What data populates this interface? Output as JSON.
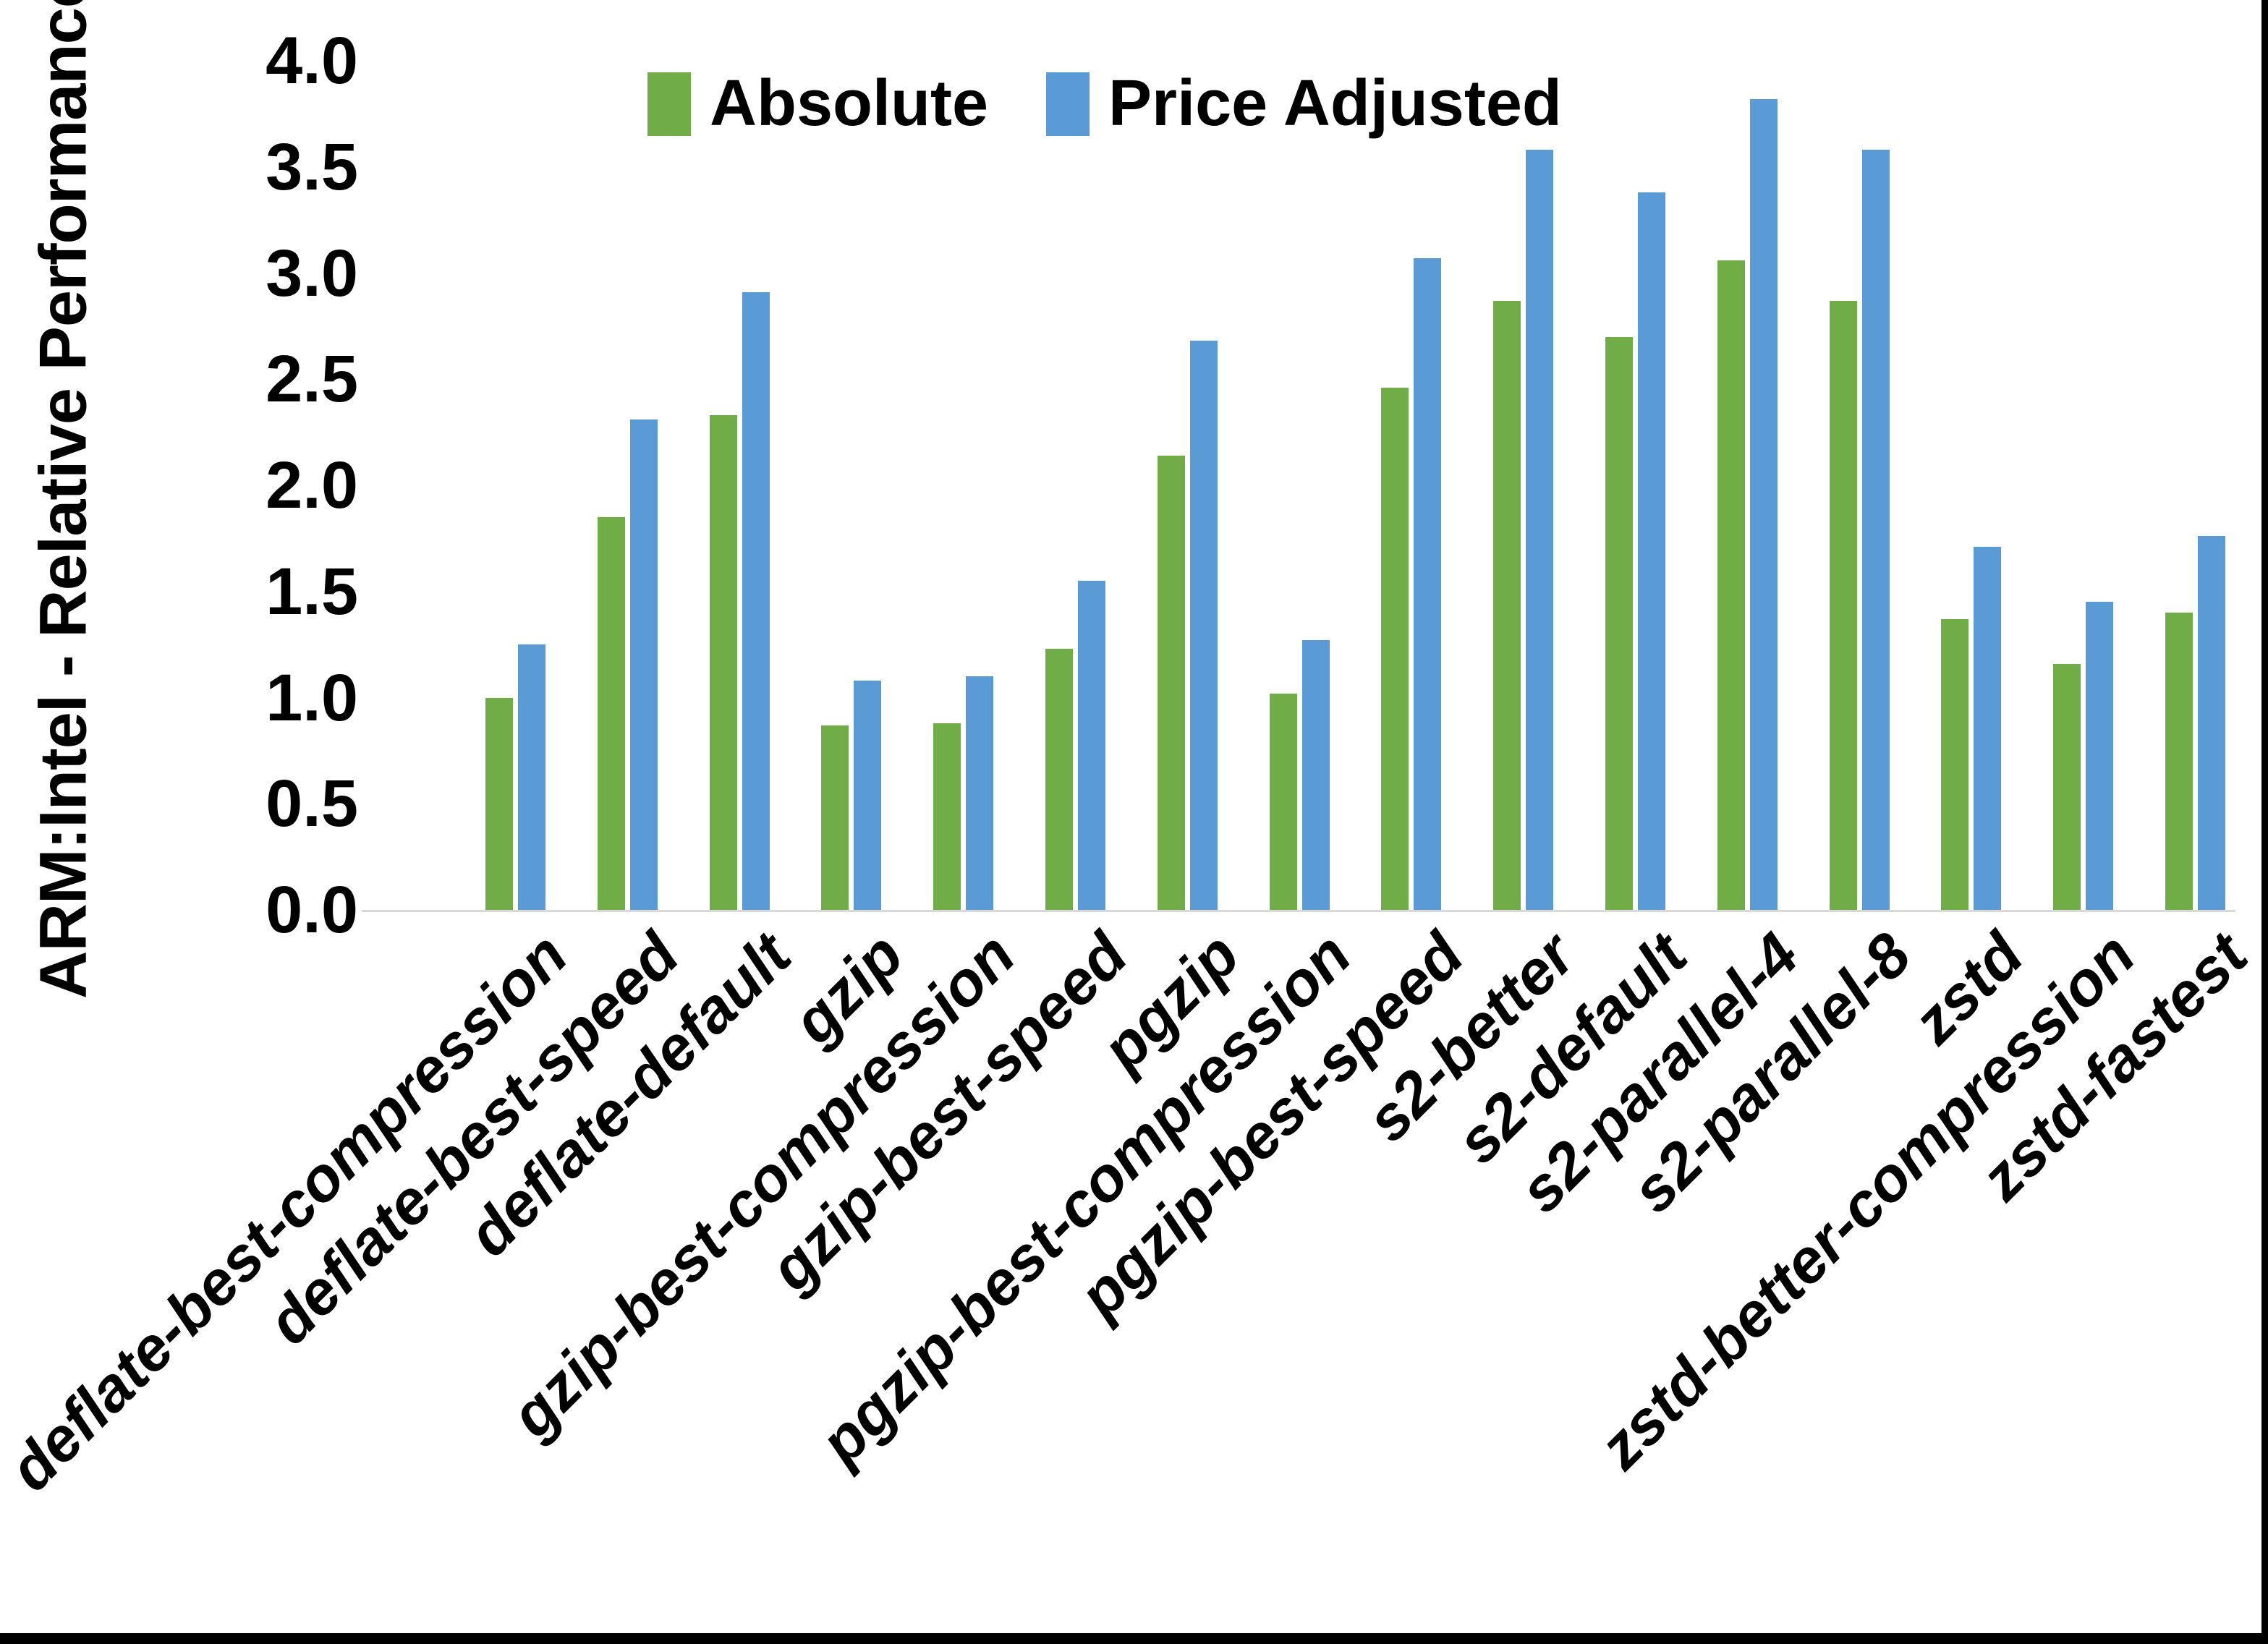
{
  "figure": {
    "background": "#ffffff",
    "border_color": "#000000"
  },
  "chart_data": {
    "type": "bar",
    "title": "",
    "xlabel": "",
    "ylabel": "ARM:Intel - Relative Performance",
    "ylim": [
      0,
      4
    ],
    "ytick_step": 0.5,
    "yticks": [
      "4.0",
      "3.5",
      "3.0",
      "2.5",
      "2.0",
      "1.5",
      "1.0",
      "0.5",
      "0.0"
    ],
    "grid": false,
    "legend_position": "top-center",
    "axis_line_color": "#d9d9d9",
    "categories": [
      "deflate-best-compression",
      "deflate-best-speed",
      "deflate-default",
      "gzip",
      "gzip-best-compression",
      "gzip-best-speed",
      "pgzip",
      "pgzip-best-compression",
      "pgzip-best-speed",
      "s2-better",
      "s2-default",
      "s2-parallel-4",
      "s2-parallel-8",
      "zstd",
      "zstd-better-compression",
      "zstd-fastest"
    ],
    "series": [
      {
        "name": "Absolute",
        "color": "#70AD47",
        "values": [
          1.0,
          1.85,
          2.33,
          0.87,
          0.88,
          1.23,
          2.14,
          1.02,
          2.46,
          2.87,
          2.7,
          3.06,
          2.87,
          1.37,
          1.16,
          1.4
        ]
      },
      {
        "name": "Price Adjusted",
        "color": "#5B9BD5",
        "values": [
          1.25,
          2.31,
          2.91,
          1.08,
          1.1,
          1.55,
          2.68,
          1.27,
          3.07,
          3.58,
          3.38,
          3.82,
          3.58,
          1.71,
          1.45,
          1.76
        ]
      }
    ]
  }
}
